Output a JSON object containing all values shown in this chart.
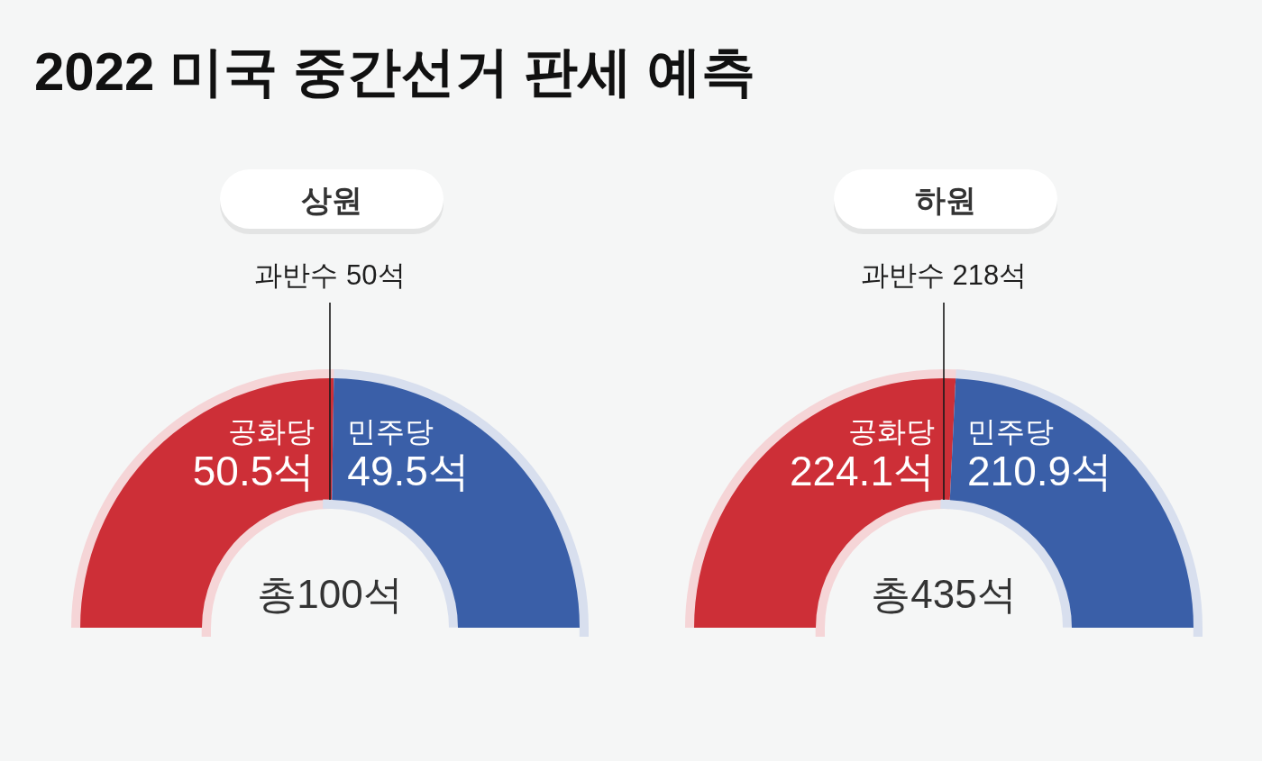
{
  "chart_data": [
    {
      "type": "donut",
      "title": "2022 미국 중간선거 판세 예측",
      "subtitle": "상원",
      "categories": [
        "공화당",
        "민주당"
      ],
      "values": [
        50.5,
        49.5
      ],
      "colors": [
        "#cd2f37",
        "#3a5fa8"
      ],
      "value_labels": [
        "50.5석",
        "49.5석"
      ],
      "annotations": [
        "과반수 50석",
        "총100석"
      ]
    },
    {
      "type": "donut",
      "subtitle": "하원",
      "categories": [
        "공화당",
        "민주당"
      ],
      "values": [
        224.1,
        210.9
      ],
      "colors": [
        "#cd2f37",
        "#3a5fa8"
      ],
      "value_labels": [
        "224.1석",
        "210.9석"
      ],
      "annotations": [
        "과반수 218석",
        "총435석"
      ]
    }
  ]
}
